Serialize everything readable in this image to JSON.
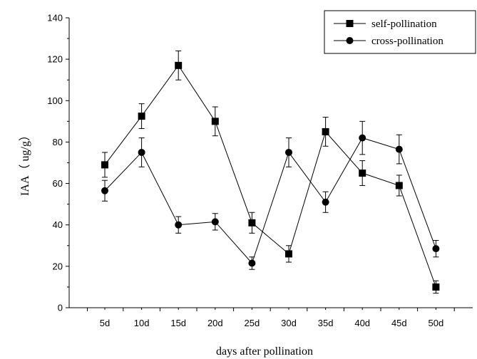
{
  "chart_data": {
    "type": "line",
    "title": "",
    "xlabel": "days after pollination",
    "ylabel": "IAA（ ug/g）",
    "categories": [
      "5d",
      "10d",
      "15d",
      "20d",
      "25d",
      "30d",
      "35d",
      "40d",
      "45d",
      "50d"
    ],
    "ylim": [
      0,
      140
    ],
    "yticks": [
      0,
      20,
      40,
      60,
      80,
      100,
      120,
      140
    ],
    "grid": false,
    "legend_position": "top-right",
    "series": [
      {
        "name": "self-pollination",
        "marker": "square",
        "values": [
          69,
          92.5,
          117,
          90,
          41,
          26,
          85,
          65,
          59,
          10
        ],
        "errors": [
          6,
          6,
          7,
          7,
          5,
          4,
          7,
          6,
          5,
          3
        ]
      },
      {
        "name": "cross-pollination",
        "marker": "circle",
        "values": [
          56.5,
          75,
          40,
          41.5,
          21.5,
          75,
          51,
          82,
          76.5,
          28.5
        ],
        "errors": [
          5,
          7,
          4,
          4,
          3,
          7,
          5,
          8,
          7,
          4
        ]
      }
    ]
  }
}
